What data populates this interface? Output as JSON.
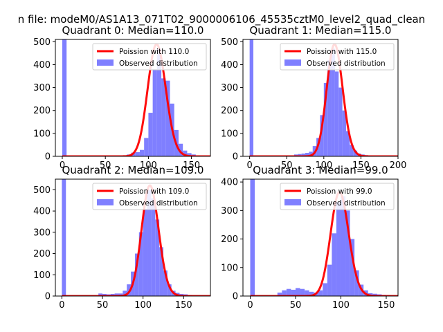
{
  "figure": {
    "suptitle": "n file: modeM0/AS1A13_071T02_9000006106_45535cztM0_level2_quad_clean"
  },
  "colors": {
    "poisson": "#ff0000",
    "observed": "#7f7fff",
    "axis": "#000000"
  },
  "chart_data": [
    {
      "type": "bar",
      "title": "Quadrant 0: Median=110.0",
      "xlim": [
        -8,
        172
      ],
      "ylim": [
        0,
        510
      ],
      "xticks": [
        0,
        50,
        100,
        150
      ],
      "yticks": [
        0,
        100,
        200,
        300,
        400,
        500
      ],
      "legend_placement": "upper-right",
      "series": [
        {
          "name": "Poission with 110.0",
          "kind": "line",
          "mean": 110.0
        },
        {
          "name": "Observed distribution",
          "kind": "histogram",
          "x": [
            0,
            70,
            75,
            80,
            85,
            90,
            95,
            100,
            105,
            110,
            115,
            120,
            125,
            130,
            135,
            140,
            145,
            150,
            155
          ],
          "values": [
            540,
            4,
            8,
            16,
            18,
            28,
            80,
            190,
            380,
            470,
            340,
            330,
            230,
            115,
            55,
            25,
            14,
            8,
            3
          ]
        }
      ]
    },
    {
      "type": "bar",
      "title": "Quadrant 1: Median=115.0",
      "xlim": [
        -9,
        200
      ],
      "ylim": [
        0,
        510
      ],
      "xticks": [
        0,
        50,
        100,
        150,
        200
      ],
      "yticks": [
        0,
        100,
        200,
        300,
        400,
        500
      ],
      "legend_placement": "upper-right",
      "series": [
        {
          "name": "Poission with 115.0",
          "kind": "line",
          "mean": 115.0
        },
        {
          "name": "Observed distribution",
          "kind": "histogram",
          "x": [
            0,
            60,
            65,
            70,
            75,
            80,
            85,
            90,
            95,
            100,
            105,
            110,
            115,
            120,
            125,
            130,
            135,
            140,
            145,
            150,
            155,
            160
          ],
          "values": [
            540,
            8,
            10,
            12,
            15,
            20,
            45,
            80,
            180,
            320,
            420,
            470,
            370,
            300,
            200,
            110,
            50,
            25,
            12,
            8,
            5,
            3
          ]
        }
      ]
    },
    {
      "type": "bar",
      "title": "Quadrant 2: Median=109.0",
      "xlim": [
        -8,
        183
      ],
      "ylim": [
        0,
        550
      ],
      "xticks": [
        0,
        50,
        100,
        150
      ],
      "yticks": [
        0,
        100,
        200,
        300,
        400,
        500
      ],
      "legend_placement": "upper-right",
      "series": [
        {
          "name": "Poission with 109.0",
          "kind": "line",
          "mean": 109.0
        },
        {
          "name": "Observed distribution",
          "kind": "histogram",
          "x": [
            0,
            45,
            50,
            55,
            60,
            65,
            70,
            75,
            80,
            85,
            90,
            95,
            100,
            105,
            110,
            115,
            120,
            125,
            130,
            135,
            140,
            145,
            150,
            155
          ],
          "values": [
            570,
            12,
            10,
            8,
            10,
            12,
            12,
            25,
            55,
            115,
            200,
            300,
            410,
            500,
            460,
            360,
            230,
            120,
            55,
            25,
            15,
            10,
            8,
            5
          ]
        }
      ]
    },
    {
      "type": "bar",
      "title": "Quadrant 3: Median=99.0",
      "xlim": [
        -8,
        163
      ],
      "ylim": [
        0,
        410
      ],
      "xticks": [
        0,
        50,
        100,
        150
      ],
      "yticks": [
        0,
        100,
        200,
        300,
        400
      ],
      "legend_placement": "upper-right",
      "series": [
        {
          "name": "Poission with 99.0",
          "kind": "line",
          "mean": 99.0
        },
        {
          "name": "Observed distribution",
          "kind": "histogram",
          "x": [
            0,
            30,
            35,
            40,
            45,
            50,
            55,
            60,
            65,
            70,
            75,
            80,
            85,
            90,
            95,
            100,
            105,
            110,
            115,
            120,
            125,
            130,
            135,
            140,
            145,
            150
          ],
          "values": [
            420,
            12,
            20,
            25,
            22,
            28,
            25,
            20,
            15,
            12,
            20,
            45,
            110,
            220,
            330,
            350,
            300,
            200,
            90,
            40,
            20,
            10,
            8,
            6,
            4,
            3
          ]
        }
      ]
    }
  ]
}
